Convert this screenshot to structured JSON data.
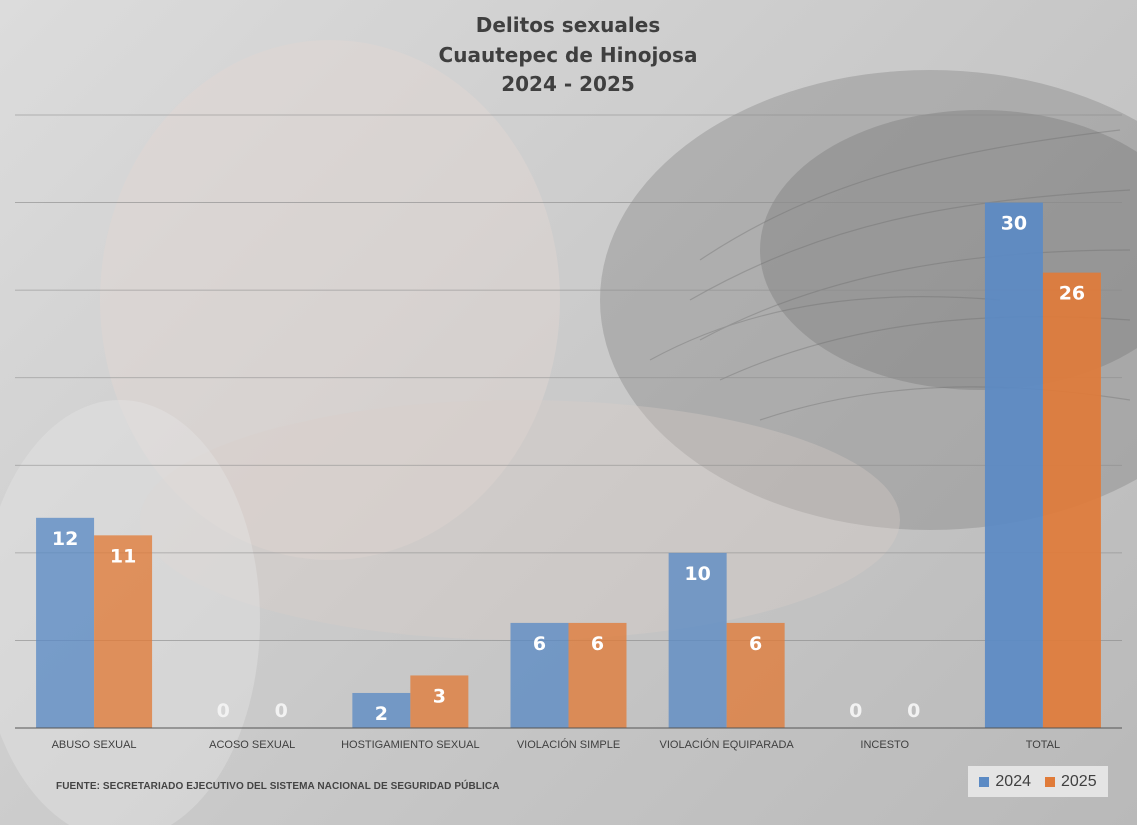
{
  "chart_data": {
    "type": "bar",
    "title": [
      "Delitos sexuales",
      "Cuautepec de Hinojosa",
      "2024 - 2025"
    ],
    "categories": [
      "ABUSO SEXUAL",
      "ACOSO SEXUAL",
      "HOSTIGAMIENTO SEXUAL",
      "VIOLACIÓN SIMPLE",
      "VIOLACIÓN EQUIPARADA",
      "INCESTO",
      "TOTAL"
    ],
    "series": [
      {
        "name": "2024",
        "values": [
          12,
          0,
          2,
          6,
          10,
          0,
          30
        ],
        "color": "#5b8ac4"
      },
      {
        "name": "2025",
        "values": [
          11,
          0,
          3,
          6,
          6,
          0,
          26
        ],
        "color": "#e07b39"
      }
    ],
    "ylim": [
      0,
      35
    ],
    "grid": true,
    "legend_position": "bottom-right",
    "source": "FUENTE: SECRETARIADO EJECUTIVO DEL SISTEMA NACIONAL  DE SEGURIDAD PÚBLICA"
  }
}
